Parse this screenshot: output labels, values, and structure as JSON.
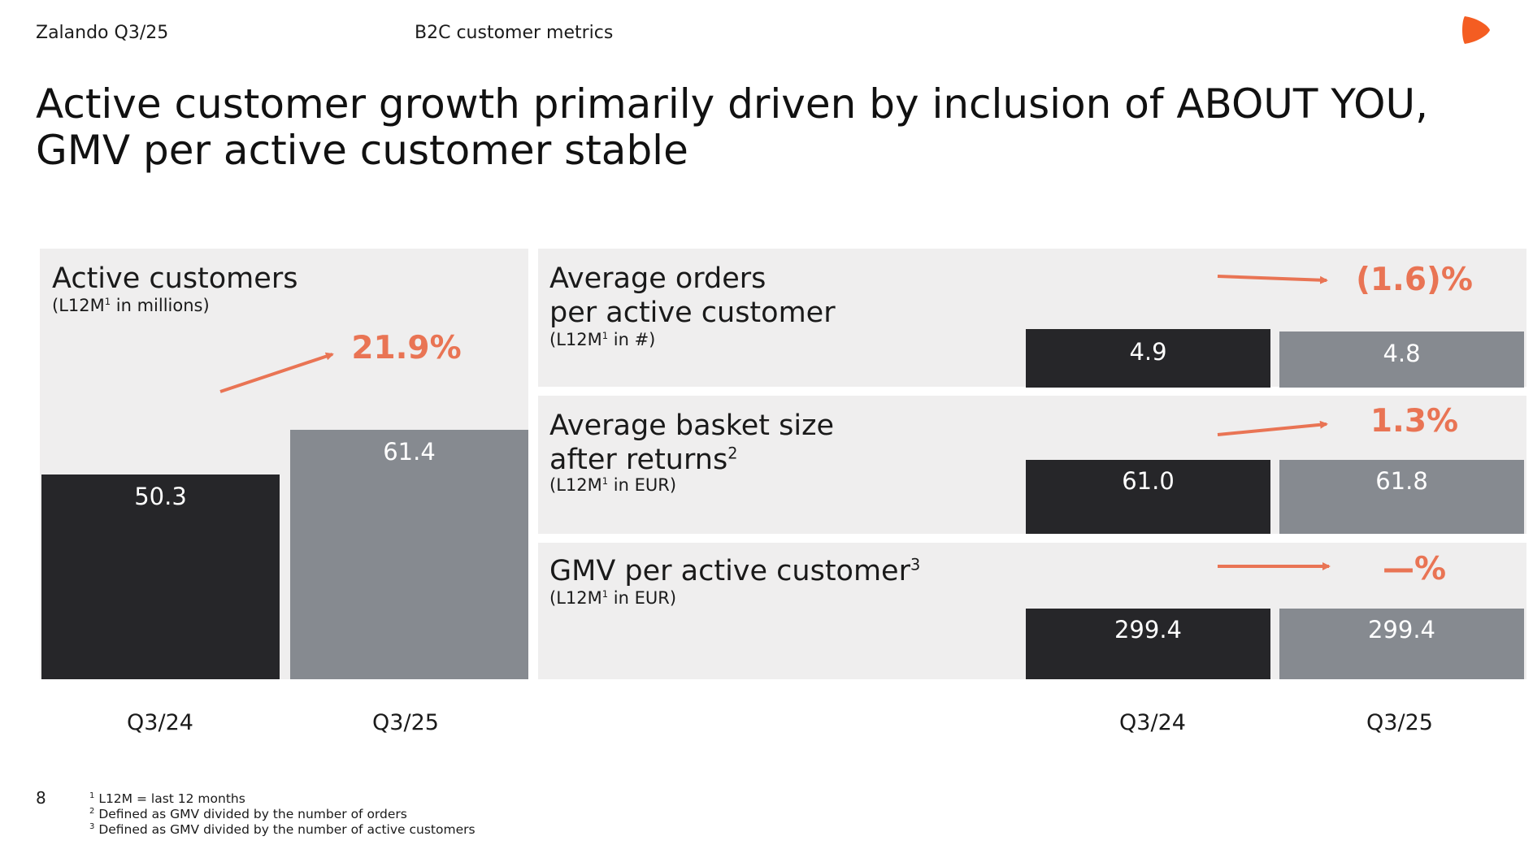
{
  "header": {
    "company_period": "Zalando Q3/25",
    "section": "B2C customer metrics"
  },
  "title": {
    "line1": "Active customer growth primarily driven by inclusion of ABOUT YOU,",
    "line2": "GMV per active customer stable"
  },
  "colors": {
    "accent": "#e97454",
    "dark_bar": "#262629",
    "grey_bar": "#868a90",
    "panel_bg": "#efeeee",
    "brand_logo": "#f45d22"
  },
  "chart_data": [
    {
      "type": "bar",
      "title": "Active customers",
      "subtitle_pre": "(L12M",
      "subtitle_sup": "1",
      "subtitle_post": " in millions)",
      "categories": [
        "Q3/24",
        "Q3/25"
      ],
      "values": [
        50.3,
        61.4
      ],
      "value_labels": [
        "50.3",
        "61.4"
      ],
      "change": "21.9%",
      "ylim": [
        0,
        72
      ]
    },
    {
      "type": "bar",
      "title_line1": "Average orders",
      "title_line2": "per active customer",
      "subtitle_pre": "(L12M",
      "subtitle_sup": "1",
      "subtitle_post": " in #)",
      "categories": [
        "Q3/24",
        "Q3/25"
      ],
      "values": [
        4.9,
        4.8
      ],
      "value_labels": [
        "4.9",
        "4.8"
      ],
      "change": "(1.6)%"
    },
    {
      "type": "bar",
      "title_line1": "Average basket size",
      "title_line2": "after returns",
      "title_sup": "2",
      "subtitle_pre": "(L12M",
      "subtitle_sup": "1",
      "subtitle_post": " in EUR)",
      "categories": [
        "Q3/24",
        "Q3/25"
      ],
      "values": [
        61.0,
        61.8
      ],
      "value_labels": [
        "61.0",
        "61.8"
      ],
      "change": "1.3%"
    },
    {
      "type": "bar",
      "title": "GMV per active customer",
      "title_sup": "3",
      "subtitle_pre": "(L12M",
      "subtitle_sup": "1",
      "subtitle_post": " in EUR)",
      "categories": [
        "Q3/24",
        "Q3/25"
      ],
      "values": [
        299.4,
        299.4
      ],
      "value_labels": [
        "299.4",
        "299.4"
      ],
      "change": "—%"
    }
  ],
  "x_labels": {
    "left": [
      "Q3/24",
      "Q3/25"
    ],
    "right": [
      "Q3/24",
      "Q3/25"
    ]
  },
  "page_number": "8",
  "footnotes": [
    {
      "num": "1",
      "text": "L12M = last 12 months"
    },
    {
      "num": "2",
      "text": "Defined as GMV divided by the number of orders"
    },
    {
      "num": "3",
      "text": "Defined as GMV divided by the number of active customers"
    }
  ],
  "icons": {
    "logo": "zalando-logo-icon",
    "arrow": "trend-arrow-icon"
  }
}
